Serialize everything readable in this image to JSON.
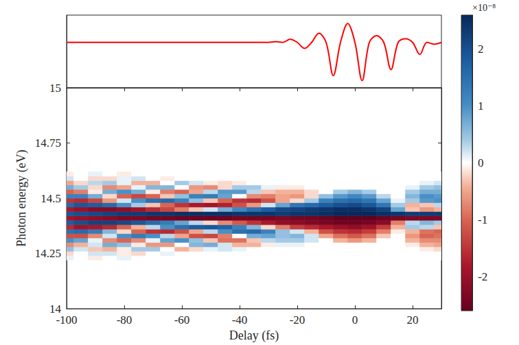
{
  "chart_data": [
    {
      "type": "line",
      "x": [
        -100,
        -40,
        -35,
        -30,
        -27.5,
        -25,
        -22.5,
        -20,
        -17.5,
        -15,
        -12.5,
        -10,
        -7.5,
        -5,
        -2.5,
        0,
        2.5,
        5,
        7.5,
        10,
        12.5,
        15,
        17.5,
        20,
        22.5,
        25,
        27.5,
        30
      ],
      "values": [
        0,
        0,
        0,
        0,
        1,
        0,
        5,
        0,
        -10,
        0,
        15,
        0,
        -55,
        0,
        31,
        0,
        -63,
        0,
        11,
        0,
        -45,
        0,
        6,
        0,
        -20,
        0,
        -3,
        0
      ],
      "color": "#ff0000",
      "xlim": [
        -100,
        30
      ],
      "ylim": [
        -75,
        45
      ],
      "tick_labels": false
    },
    {
      "type": "heatmap",
      "x_label": "Delay (fs)",
      "y_label": "Photon energy (eV)",
      "x": [
        -100,
        -95,
        -90,
        -85,
        -80,
        -75,
        -70,
        -65,
        -60,
        -55,
        -50,
        -45,
        -40,
        -35,
        -30,
        -25,
        -20,
        -15,
        -10,
        -5,
        0,
        5,
        10,
        15,
        20,
        25,
        30
      ],
      "y": [
        14.23,
        14.25,
        14.27,
        14.29,
        14.31,
        14.33,
        14.35,
        14.37,
        14.39,
        14.41,
        14.43,
        14.45,
        14.47,
        14.49,
        14.51,
        14.53,
        14.55,
        14.57,
        14.59,
        14.61
      ],
      "cells": [
        [
          0.1,
          0,
          -0.1,
          0,
          0.1,
          0,
          0,
          0,
          0,
          0,
          0,
          0,
          0,
          0,
          0,
          0,
          0,
          0,
          0,
          0,
          0,
          0,
          0,
          0,
          0,
          0,
          0
        ],
        [
          -0.2,
          0,
          0.2,
          0.2,
          -0.1,
          -0.2,
          0,
          0.1,
          0,
          0,
          0,
          0,
          0,
          0,
          0,
          0,
          0,
          0,
          0,
          0,
          0,
          0,
          0,
          0,
          0,
          0,
          0
        ],
        [
          0.5,
          0.2,
          -0.3,
          -0.4,
          -0.1,
          0.4,
          0.4,
          0,
          -0.4,
          -0.2,
          0.1,
          0.2,
          0.1,
          0,
          0,
          0,
          0,
          0,
          0,
          0,
          0,
          0,
          0,
          0,
          0,
          -0.1,
          -0.2
        ],
        [
          -0.7,
          -0.4,
          0.2,
          0.7,
          0.5,
          -0.1,
          -0.6,
          -0.6,
          0,
          0.6,
          0.7,
          0.2,
          -0.4,
          -0.4,
          -0.1,
          0.1,
          0.1,
          0,
          0,
          0,
          0,
          0,
          0,
          0,
          -0.1,
          -0.4,
          -0.5
        ],
        [
          1.0,
          0.8,
          0.1,
          -0.7,
          -1.0,
          -0.7,
          0.1,
          0.8,
          1.0,
          0.5,
          -0.3,
          -0.9,
          -0.9,
          -0.3,
          0.3,
          0.4,
          0.4,
          0.2,
          0,
          -0.4,
          -0.6,
          -0.4,
          0,
          0,
          -0.4,
          -0.7,
          -0.7
        ],
        [
          -1.2,
          -1.2,
          -0.7,
          0.2,
          1.0,
          1.3,
          1.0,
          0.3,
          -0.5,
          -1.2,
          -1.3,
          -0.8,
          0,
          0.7,
          0.8,
          0.5,
          0.6,
          0.2,
          -0.5,
          -0.9,
          -1.1,
          -0.9,
          -0.3,
          0,
          -0.6,
          -1.0,
          -0.9
        ],
        [
          1.5,
          1.6,
          1.3,
          0.6,
          -0.2,
          -1.0,
          -1.5,
          -1.6,
          -1.2,
          -0.5,
          0.3,
          1.0,
          1.5,
          1.6,
          1.2,
          0.5,
          0.2,
          -0.4,
          -1.2,
          -1.5,
          -1.6,
          -1.4,
          -0.8,
          -0.1,
          -0.4,
          -0.9,
          -1.0
        ],
        [
          -1.6,
          -1.9,
          -1.8,
          -1.6,
          -1.0,
          -0.4,
          0.3,
          1.0,
          1.5,
          1.8,
          1.9,
          1.7,
          1.2,
          0.6,
          -0.2,
          -0.8,
          -1.4,
          -1.6,
          -1.8,
          -2.0,
          -2.1,
          -1.9,
          -1.4,
          -0.4,
          0.4,
          0.3,
          -0.3
        ],
        [
          1.8,
          2.0,
          2.2,
          2.2,
          2.1,
          1.9,
          1.6,
          1.3,
          0.8,
          0.3,
          -0.2,
          -0.7,
          -1.1,
          -1.5,
          -1.8,
          -2.1,
          -2.2,
          -2.3,
          -2.4,
          -2.5,
          -2.5,
          -2.4,
          -2.2,
          -0.8,
          0.3,
          0.6,
          0.4
        ],
        [
          -1.9,
          -2.0,
          -2.1,
          -2.2,
          -2.3,
          -2.3,
          -2.4,
          -2.4,
          -2.5,
          -2.5,
          -2.5,
          -2.5,
          -2.4,
          -2.4,
          -2.4,
          -2.3,
          -2.4,
          -2.4,
          -2.5,
          -2.6,
          -2.6,
          -2.6,
          -2.5,
          -2.4,
          -2.3,
          -2.3,
          -2.3
        ],
        [
          1.9,
          2.0,
          2.1,
          2.2,
          2.3,
          2.3,
          2.4,
          2.4,
          2.5,
          2.5,
          2.5,
          2.5,
          2.4,
          2.4,
          2.4,
          2.3,
          2.4,
          2.4,
          2.5,
          2.6,
          2.6,
          2.6,
          2.5,
          2.4,
          2.3,
          2.3,
          2.3
        ],
        [
          -1.8,
          -2.0,
          -2.2,
          -2.2,
          -2.1,
          -1.9,
          -1.6,
          -1.3,
          -0.8,
          -0.3,
          0.2,
          0.7,
          1.1,
          1.5,
          1.8,
          2.1,
          2.2,
          2.3,
          2.4,
          2.5,
          2.5,
          2.4,
          2.2,
          0.8,
          -0.3,
          -0.6,
          -0.4
        ],
        [
          1.6,
          1.9,
          1.8,
          1.6,
          1.0,
          0.4,
          -0.3,
          -1.0,
          -1.5,
          -1.8,
          -1.9,
          -1.7,
          -1.2,
          -0.6,
          0.2,
          0.8,
          1.4,
          1.6,
          1.8,
          2.0,
          2.1,
          1.9,
          1.4,
          0.4,
          -0.4,
          -0.3,
          0.3
        ],
        [
          -1.5,
          -1.6,
          -1.3,
          -0.6,
          0.2,
          1.0,
          1.5,
          1.6,
          1.2,
          0.5,
          -0.3,
          -1.0,
          -1.5,
          -1.6,
          -1.2,
          -0.5,
          -0.2,
          0.4,
          1.2,
          1.5,
          1.6,
          1.4,
          0.8,
          0.1,
          0.4,
          0.9,
          1.0
        ],
        [
          1.2,
          1.2,
          0.7,
          -0.2,
          -1.0,
          -1.3,
          -1.0,
          -0.3,
          0.5,
          1.2,
          1.3,
          0.8,
          0,
          -0.7,
          -0.8,
          -0.5,
          -0.6,
          -0.2,
          0.5,
          0.9,
          1.1,
          0.9,
          0.3,
          0,
          0.6,
          1.0,
          0.9
        ],
        [
          -1.0,
          -0.8,
          -0.1,
          0.7,
          1.0,
          0.7,
          -0.1,
          -0.8,
          -1.0,
          -0.5,
          0.3,
          0.9,
          0.9,
          0.3,
          -0.3,
          -0.4,
          -0.4,
          -0.2,
          0,
          0.4,
          0.6,
          0.4,
          0,
          0,
          0.4,
          0.7,
          0.7
        ],
        [
          0.7,
          0.4,
          -0.2,
          -0.7,
          -0.5,
          0.1,
          0.6,
          0.6,
          0,
          -0.6,
          -0.7,
          -0.2,
          0.4,
          0.4,
          0.1,
          -0.1,
          -0.1,
          0,
          0,
          0,
          0,
          0,
          0,
          0,
          0.1,
          0.4,
          0.5
        ],
        [
          -0.5,
          -0.2,
          0.3,
          0.4,
          0.1,
          -0.4,
          -0.4,
          0,
          0.4,
          0.2,
          -0.1,
          -0.2,
          -0.1,
          0,
          0,
          0,
          0,
          0,
          0,
          0,
          0,
          0,
          0,
          0,
          0,
          0.1,
          0.2
        ],
        [
          0.2,
          0,
          -0.2,
          -0.2,
          0.1,
          0.2,
          0,
          -0.1,
          0,
          0,
          0,
          0,
          0,
          0,
          0,
          0,
          0,
          0,
          0,
          0,
          0,
          0,
          0,
          0,
          0,
          0,
          0
        ],
        [
          -0.1,
          0,
          0.1,
          0,
          -0.1,
          0,
          0,
          0,
          0,
          0,
          0,
          0,
          0,
          0,
          0,
          0,
          0,
          0,
          0,
          0,
          0,
          0,
          0,
          0,
          0,
          0,
          0
        ]
      ],
      "xlim": [
        -100,
        30
      ],
      "xticks": [
        -100,
        -80,
        -60,
        -40,
        -20,
        0,
        20
      ],
      "ylim": [
        14,
        15
      ],
      "yticks": [
        14,
        14.25,
        14.5,
        14.75,
        15
      ],
      "colorbar": {
        "label": "×10⁻⁸",
        "range": [
          -2.6,
          2.6
        ],
        "ticks": [
          -2,
          -1,
          0,
          1,
          2
        ]
      }
    }
  ]
}
